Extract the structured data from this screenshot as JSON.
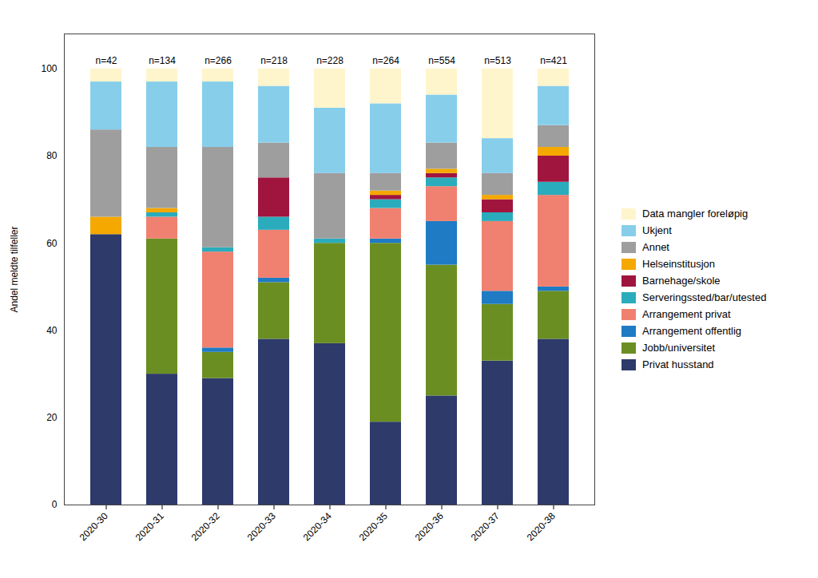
{
  "chart_data": {
    "type": "bar",
    "stacked": true,
    "legend": "right",
    "ylabel": "Andel meldte tilfeller",
    "categories": [
      "2020-30",
      "2020-31",
      "2020-32",
      "2020-33",
      "2020-34",
      "2020-35",
      "2020-36",
      "2020-37",
      "2020-38"
    ],
    "annotations": [
      "n=42",
      "n=134",
      "n=266",
      "n=218",
      "n=228",
      "n=264",
      "n=554",
      "n=513",
      "n=421"
    ],
    "series": [
      {
        "name": "Privat husstand",
        "color": "#2D3A6A",
        "values": [
          62,
          30,
          29,
          38,
          37,
          19,
          25,
          33,
          38
        ]
      },
      {
        "name": "Jobb/universitet",
        "color": "#6B8E23",
        "values": [
          0,
          31,
          6,
          13,
          23,
          41,
          30,
          13,
          11
        ]
      },
      {
        "name": "Arrangement offentlig",
        "color": "#1E7BC4",
        "values": [
          0,
          0,
          1,
          1,
          0,
          1,
          10,
          3,
          1
        ]
      },
      {
        "name": "Arrangement privat",
        "color": "#F08070",
        "values": [
          0,
          5,
          22,
          11,
          0,
          7,
          8,
          16,
          21
        ]
      },
      {
        "name": "Serveringssted/bar/utested",
        "color": "#2AACBC",
        "values": [
          0,
          1,
          1,
          3,
          1,
          2,
          2,
          2,
          3
        ]
      },
      {
        "name": "Barnehage/skole",
        "color": "#A0153E",
        "values": [
          0,
          0,
          0,
          9,
          0,
          1,
          1,
          3,
          6
        ]
      },
      {
        "name": "Helseinstitusjon",
        "color": "#F5A800",
        "values": [
          4,
          1,
          0,
          0,
          0,
          1,
          1,
          1,
          2
        ]
      },
      {
        "name": "Annet",
        "color": "#9E9E9E",
        "values": [
          20,
          14,
          23,
          8,
          15,
          4,
          6,
          5,
          5
        ]
      },
      {
        "name": "Ukjent",
        "color": "#87CEEB",
        "values": [
          11,
          15,
          15,
          13,
          15,
          16,
          11,
          8,
          9
        ]
      },
      {
        "name": "Data mangler foreløpig",
        "color": "#FFF5CC",
        "values": [
          3,
          3,
          3,
          4,
          9,
          8,
          6,
          16,
          4
        ]
      }
    ],
    "ylim": [
      0,
      108
    ],
    "yticks": [
      0,
      20,
      40,
      60,
      80,
      100
    ]
  }
}
